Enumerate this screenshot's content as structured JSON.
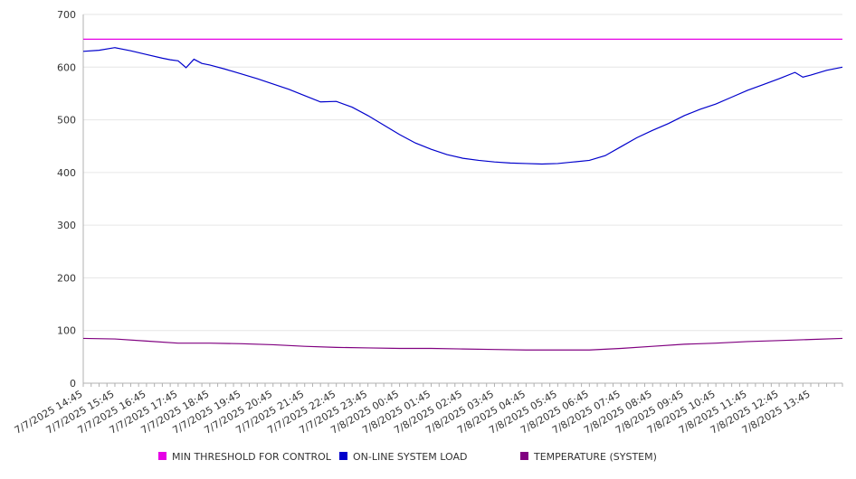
{
  "chart_data": {
    "type": "line",
    "title": "",
    "xlabel": "",
    "ylabel": "",
    "ylim": [
      0,
      700
    ],
    "yticks": [
      0,
      100,
      200,
      300,
      400,
      500,
      600,
      700
    ],
    "grid": true,
    "legend_position": "bottom",
    "x_tick_labels": [
      "7/7/2025 14:45",
      "7/7/2025 15:45",
      "7/7/2025 16:45",
      "7/7/2025 17:45",
      "7/7/2025 18:45",
      "7/7/2025 19:45",
      "7/7/2025 20:45",
      "7/7/2025 21:45",
      "7/7/2025 22:45",
      "7/7/2025 23:45",
      "7/8/2025 00:45",
      "7/8/2025 01:45",
      "7/8/2025 02:45",
      "7/8/2025 03:45",
      "7/8/2025 04:45",
      "7/8/2025 05:45",
      "7/8/2025 06:45",
      "7/8/2025 07:45",
      "7/8/2025 08:45",
      "7/8/2025 09:45",
      "7/8/2025 10:45",
      "7/8/2025 11:45",
      "7/8/2025 12:45",
      "7/8/2025 13:45"
    ],
    "series": [
      {
        "name": "MIN THRESHOLD FOR CONTROL",
        "color": "#e600e6",
        "points": [
          [
            "7/7/2025 14:45",
            653
          ],
          [
            "7/8/2025 14:45",
            653
          ]
        ]
      },
      {
        "name": "ON-LINE SYSTEM LOAD",
        "color": "#0000cc",
        "points": [
          [
            "7/7/2025 14:45",
            630
          ],
          [
            "7/7/2025 15:15",
            632
          ],
          [
            "7/7/2025 15:45",
            637
          ],
          [
            "7/7/2025 16:15",
            631
          ],
          [
            "7/7/2025 16:45",
            624
          ],
          [
            "7/7/2025 17:15",
            617
          ],
          [
            "7/7/2025 17:30",
            614
          ],
          [
            "7/7/2025 17:45",
            612
          ],
          [
            "7/7/2025 18:00",
            599
          ],
          [
            "7/7/2025 18:15",
            615
          ],
          [
            "7/7/2025 18:30",
            607
          ],
          [
            "7/7/2025 18:45",
            604
          ],
          [
            "7/7/2025 19:15",
            596
          ],
          [
            "7/7/2025 19:45",
            587
          ],
          [
            "7/7/2025 20:15",
            578
          ],
          [
            "7/7/2025 20:45",
            568
          ],
          [
            "7/7/2025 21:15",
            558
          ],
          [
            "7/7/2025 21:45",
            546
          ],
          [
            "7/7/2025 22:15",
            534
          ],
          [
            "7/7/2025 22:45",
            535
          ],
          [
            "7/7/2025 23:15",
            524
          ],
          [
            "7/7/2025 23:45",
            508
          ],
          [
            "7/8/2025 00:15",
            490
          ],
          [
            "7/8/2025 00:45",
            472
          ],
          [
            "7/8/2025 01:15",
            456
          ],
          [
            "7/8/2025 01:45",
            444
          ],
          [
            "7/8/2025 02:15",
            434
          ],
          [
            "7/8/2025 02:45",
            427
          ],
          [
            "7/8/2025 03:15",
            423
          ],
          [
            "7/8/2025 03:45",
            420
          ],
          [
            "7/8/2025 04:15",
            418
          ],
          [
            "7/8/2025 04:45",
            417
          ],
          [
            "7/8/2025 05:15",
            416
          ],
          [
            "7/8/2025 05:45",
            417
          ],
          [
            "7/8/2025 06:15",
            420
          ],
          [
            "7/8/2025 06:45",
            423
          ],
          [
            "7/8/2025 07:15",
            432
          ],
          [
            "7/8/2025 07:45",
            449
          ],
          [
            "7/8/2025 08:15",
            466
          ],
          [
            "7/8/2025 08:45",
            480
          ],
          [
            "7/8/2025 09:15",
            493
          ],
          [
            "7/8/2025 09:45",
            508
          ],
          [
            "7/8/2025 10:15",
            520
          ],
          [
            "7/8/2025 10:45",
            530
          ],
          [
            "7/8/2025 11:15",
            543
          ],
          [
            "7/8/2025 11:45",
            556
          ],
          [
            "7/8/2025 12:15",
            567
          ],
          [
            "7/8/2025 12:45",
            578
          ],
          [
            "7/8/2025 13:15",
            590
          ],
          [
            "7/8/2025 13:30",
            581
          ],
          [
            "7/8/2025 13:45",
            585
          ],
          [
            "7/8/2025 14:15",
            594
          ],
          [
            "7/8/2025 14:45",
            600
          ]
        ]
      },
      {
        "name": "TEMPERATURE (SYSTEM)",
        "color": "#800080",
        "points": [
          [
            "7/7/2025 14:45",
            85
          ],
          [
            "7/7/2025 15:45",
            84
          ],
          [
            "7/7/2025 16:45",
            80
          ],
          [
            "7/7/2025 17:45",
            76
          ],
          [
            "7/7/2025 18:45",
            76
          ],
          [
            "7/7/2025 19:45",
            75
          ],
          [
            "7/7/2025 20:45",
            73
          ],
          [
            "7/7/2025 21:45",
            70
          ],
          [
            "7/7/2025 22:45",
            68
          ],
          [
            "7/7/2025 23:45",
            67
          ],
          [
            "7/8/2025 00:45",
            66
          ],
          [
            "7/8/2025 01:45",
            66
          ],
          [
            "7/8/2025 02:45",
            65
          ],
          [
            "7/8/2025 03:45",
            64
          ],
          [
            "7/8/2025 04:45",
            63
          ],
          [
            "7/8/2025 05:45",
            63
          ],
          [
            "7/8/2025 06:45",
            63
          ],
          [
            "7/8/2025 07:45",
            66
          ],
          [
            "7/8/2025 08:45",
            70
          ],
          [
            "7/8/2025 09:45",
            74
          ],
          [
            "7/8/2025 10:45",
            76
          ],
          [
            "7/8/2025 11:45",
            79
          ],
          [
            "7/8/2025 12:45",
            81
          ],
          [
            "7/8/2025 13:45",
            83
          ],
          [
            "7/8/2025 14:45",
            85
          ]
        ]
      }
    ]
  }
}
